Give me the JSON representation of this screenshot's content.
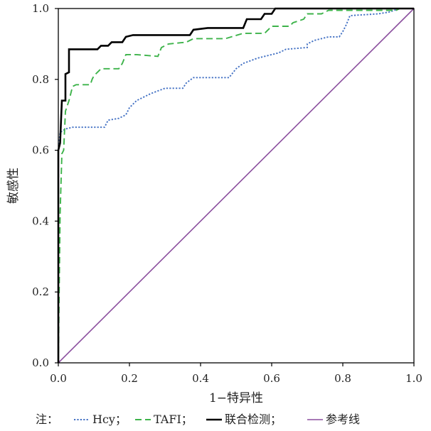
{
  "chart_data": {
    "type": "line",
    "xlabel": "1−特异性",
    "ylabel": "敏感性",
    "xlim": [
      0,
      1
    ],
    "ylim": [
      0,
      1
    ],
    "xticks": [
      "0.0",
      "0.2",
      "0.4",
      "0.6",
      "0.8",
      "1.0"
    ],
    "yticks": [
      "0.0",
      "0.2",
      "0.4",
      "0.6",
      "0.8",
      "1.0"
    ],
    "grid": false,
    "legend": {
      "placement": "bottom",
      "prefix": "注：",
      "entries": [
        {
          "label": "Hcy；",
          "series": "hcy"
        },
        {
          "label": "TAFI；",
          "series": "tafi"
        },
        {
          "label": "联合检测；",
          "series": "combined"
        },
        {
          "label": "参考线",
          "series": "ref"
        }
      ]
    },
    "series": [
      {
        "id": "hcy",
        "name": "Hcy",
        "color": "#4472C4",
        "style": "dotted",
        "points": [
          [
            0,
            0
          ],
          [
            0,
            0.6
          ],
          [
            0.005,
            0.65
          ],
          [
            0.02,
            0.66
          ],
          [
            0.04,
            0.665
          ],
          [
            0.13,
            0.665
          ],
          [
            0.14,
            0.685
          ],
          [
            0.17,
            0.69
          ],
          [
            0.19,
            0.7
          ],
          [
            0.2,
            0.72
          ],
          [
            0.22,
            0.74
          ],
          [
            0.26,
            0.76
          ],
          [
            0.3,
            0.775
          ],
          [
            0.35,
            0.775
          ],
          [
            0.36,
            0.79
          ],
          [
            0.38,
            0.805
          ],
          [
            0.48,
            0.805
          ],
          [
            0.5,
            0.83
          ],
          [
            0.52,
            0.845
          ],
          [
            0.56,
            0.86
          ],
          [
            0.62,
            0.875
          ],
          [
            0.64,
            0.885
          ],
          [
            0.7,
            0.89
          ],
          [
            0.7,
            0.9
          ],
          [
            0.72,
            0.91
          ],
          [
            0.76,
            0.92
          ],
          [
            0.79,
            0.92
          ],
          [
            0.8,
            0.935
          ],
          [
            0.81,
            0.955
          ],
          [
            0.82,
            0.98
          ],
          [
            0.9,
            0.985
          ],
          [
            0.93,
            0.99
          ],
          [
            0.96,
            1.0
          ],
          [
            1,
            1
          ]
        ]
      },
      {
        "id": "tafi",
        "name": "TAFI",
        "color": "#3DB34A",
        "style": "dashed",
        "points": [
          [
            0,
            0
          ],
          [
            0.005,
            0.42
          ],
          [
            0.01,
            0.59
          ],
          [
            0.015,
            0.6
          ],
          [
            0.02,
            0.71
          ],
          [
            0.03,
            0.74
          ],
          [
            0.04,
            0.78
          ],
          [
            0.05,
            0.785
          ],
          [
            0.09,
            0.785
          ],
          [
            0.095,
            0.8
          ],
          [
            0.1,
            0.81
          ],
          [
            0.12,
            0.83
          ],
          [
            0.17,
            0.83
          ],
          [
            0.18,
            0.845
          ],
          [
            0.19,
            0.87
          ],
          [
            0.22,
            0.87
          ],
          [
            0.28,
            0.865
          ],
          [
            0.29,
            0.89
          ],
          [
            0.31,
            0.9
          ],
          [
            0.36,
            0.905
          ],
          [
            0.38,
            0.915
          ],
          [
            0.47,
            0.915
          ],
          [
            0.52,
            0.93
          ],
          [
            0.58,
            0.93
          ],
          [
            0.6,
            0.95
          ],
          [
            0.65,
            0.95
          ],
          [
            0.66,
            0.96
          ],
          [
            0.69,
            0.97
          ],
          [
            0.7,
            0.985
          ],
          [
            0.74,
            0.985
          ],
          [
            0.76,
            0.995
          ],
          [
            0.95,
            0.995
          ],
          [
            0.96,
            1.0
          ],
          [
            1,
            1
          ]
        ]
      },
      {
        "id": "combined",
        "name": "联合检测",
        "color": "#000000",
        "style": "solid",
        "points": [
          [
            0,
            0
          ],
          [
            0,
            0.6
          ],
          [
            0.005,
            0.62
          ],
          [
            0.01,
            0.74
          ],
          [
            0.02,
            0.74
          ],
          [
            0.02,
            0.815
          ],
          [
            0.03,
            0.82
          ],
          [
            0.03,
            0.885
          ],
          [
            0.11,
            0.885
          ],
          [
            0.12,
            0.895
          ],
          [
            0.14,
            0.895
          ],
          [
            0.15,
            0.905
          ],
          [
            0.18,
            0.905
          ],
          [
            0.19,
            0.92
          ],
          [
            0.21,
            0.925
          ],
          [
            0.37,
            0.925
          ],
          [
            0.38,
            0.94
          ],
          [
            0.42,
            0.945
          ],
          [
            0.52,
            0.945
          ],
          [
            0.53,
            0.97
          ],
          [
            0.57,
            0.97
          ],
          [
            0.58,
            0.985
          ],
          [
            0.6,
            0.985
          ],
          [
            0.61,
            1.0
          ],
          [
            1,
            1
          ]
        ]
      },
      {
        "id": "ref",
        "name": "参考线",
        "color": "#8B4F9E",
        "style": "solid",
        "points": [
          [
            0,
            0
          ],
          [
            1,
            1
          ]
        ]
      }
    ]
  }
}
